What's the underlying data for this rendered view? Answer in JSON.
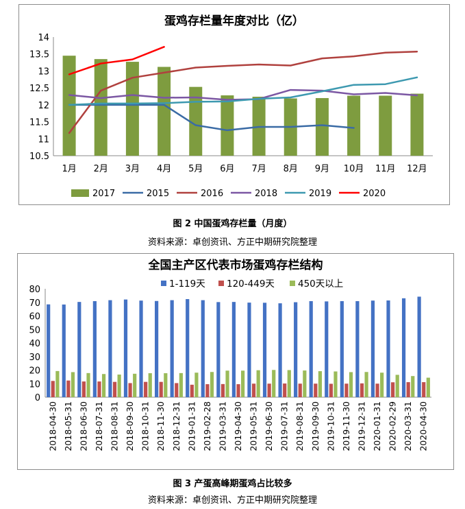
{
  "chart_data": [
    {
      "type": "bar+line",
      "title": "蛋鸡存栏量年度对比（亿）",
      "categories": [
        "1月",
        "2月",
        "3月",
        "4月",
        "5月",
        "6月",
        "7月",
        "8月",
        "9月",
        "10月",
        "11月",
        "12月"
      ],
      "ylim": [
        10.5,
        14
      ],
      "yticks": [
        "10.5",
        "11",
        "11.5",
        "12",
        "12.5",
        "13",
        "13.5",
        "14"
      ],
      "bar_series": {
        "name": "2017",
        "color": "#7e9c3f",
        "values": [
          13.45,
          13.35,
          13.27,
          13.12,
          12.53,
          12.28,
          12.24,
          12.19,
          12.2,
          12.27,
          12.27,
          12.33
        ]
      },
      "line_series": [
        {
          "name": "2015",
          "color": "#3a6ba5",
          "values": [
            12.0,
            12.0,
            12.0,
            12.0,
            11.4,
            11.25,
            11.35,
            11.35,
            11.4,
            11.32,
            null,
            null
          ]
        },
        {
          "name": "2016",
          "color": "#b0413e",
          "values": [
            11.17,
            12.42,
            12.8,
            12.95,
            13.1,
            13.15,
            13.19,
            13.16,
            13.37,
            13.43,
            13.54,
            13.57
          ]
        },
        {
          "name": "2018",
          "color": "#7b57a3",
          "values": [
            12.29,
            12.2,
            12.29,
            12.21,
            12.22,
            12.15,
            12.17,
            12.44,
            12.42,
            12.31,
            12.35,
            12.28
          ]
        },
        {
          "name": "2019",
          "color": "#3d99b0",
          "values": [
            12.0,
            12.04,
            12.04,
            12.05,
            12.09,
            12.1,
            12.18,
            12.22,
            12.4,
            12.59,
            12.61,
            12.81
          ]
        },
        {
          "name": "2020",
          "color": "#ff0000",
          "values": [
            12.9,
            13.22,
            13.34,
            13.71,
            null,
            null,
            null,
            null,
            null,
            null,
            null,
            null
          ]
        }
      ],
      "legend": [
        "2017",
        "2015",
        "2016",
        "2018",
        "2019",
        "2020"
      ],
      "legend_position": "bottom"
    },
    {
      "type": "bar",
      "title": "全国主产区代表市场蛋鸡存栏结构",
      "categories": [
        "2018-04-30",
        "2018-05-31",
        "2018-06-30",
        "2018-07-31",
        "2018-08-31",
        "2018-09-30",
        "2018-10-31",
        "2018-11-30",
        "2018-12-31",
        "2019-01-31",
        "2019-02-28",
        "2019-03-31",
        "2019-04-30",
        "2019-05-31",
        "2019-06-30",
        "2019-07-31",
        "2019-08-31",
        "2019-09-30",
        "2019-10-31",
        "2019-11-30",
        "2019-12-31",
        "2020-01-31",
        "2020-02-29",
        "2020-03-31",
        "2020-04-30"
      ],
      "ylim": [
        0,
        80
      ],
      "yticks": [
        "0",
        "10",
        "20",
        "30",
        "40",
        "50",
        "60",
        "70",
        "80"
      ],
      "series": [
        {
          "name": "1-119天",
          "color": "#4472c4",
          "values": [
            68.5,
            68.4,
            70.3,
            70.9,
            71.6,
            72.1,
            71.3,
            71.0,
            71.6,
            72.4,
            71.6,
            70.2,
            70.3,
            69.8,
            69.7,
            69.3,
            70.1,
            70.9,
            70.7,
            70.9,
            70.9,
            71.3,
            71.4,
            73.0,
            74.2
          ]
        },
        {
          "name": "120-449天",
          "color": "#c0504d",
          "values": [
            12.0,
            12.3,
            11.6,
            11.6,
            11.3,
            10.4,
            11.3,
            11.3,
            10.4,
            9.2,
            9.6,
            9.7,
            9.6,
            10.0,
            10.0,
            10.1,
            10.0,
            10.0,
            9.9,
            10.0,
            10.2,
            10.0,
            11.0,
            11.1,
            11.1
          ]
        },
        {
          "name": "450天以上",
          "color": "#9bbb59",
          "values": [
            19.3,
            18.5,
            17.8,
            17.1,
            16.7,
            17.3,
            17.7,
            17.7,
            17.8,
            18.1,
            18.6,
            19.6,
            19.6,
            19.9,
            20.1,
            20.0,
            19.7,
            19.2,
            19.0,
            18.5,
            18.6,
            18.1,
            16.5,
            15.6,
            14.4
          ]
        }
      ],
      "legend_position": "top"
    }
  ],
  "captions": {
    "fig2_title": "图 2  中国蛋鸡存栏量（月度）",
    "fig2_source": "资料来源：卓创资讯、方正中期研究院整理",
    "fig3_title": "图 3  产蛋高峰期蛋鸡占比较多",
    "fig3_source": "资料来源：卓创资讯、方正中期研究院整理"
  }
}
